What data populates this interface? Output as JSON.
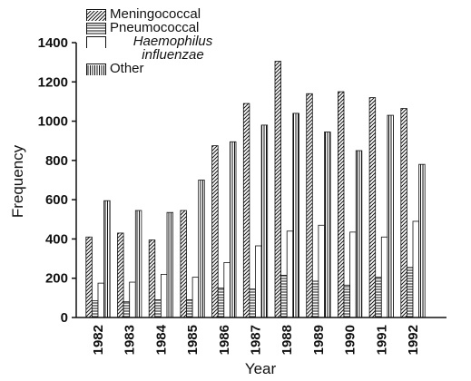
{
  "chart_data": {
    "type": "bar",
    "x_label": "Year",
    "y_label": "Frequency",
    "categories": [
      "1982",
      "1983",
      "1984",
      "1985",
      "1986",
      "1987",
      "1988",
      "1989",
      "1990",
      "1991",
      "1992"
    ],
    "series": [
      {
        "name": "Meningococcal",
        "color": "hatch-diagonal",
        "values": [
          410,
          430,
          395,
          545,
          875,
          1090,
          1305,
          1140,
          1150,
          1120,
          1065
        ]
      },
      {
        "name": "Pneumococcal",
        "color": "hatch-horizontal",
        "values": [
          85,
          80,
          90,
          90,
          150,
          145,
          215,
          185,
          165,
          205,
          255
        ]
      },
      {
        "name": "Haemophilus influenzae",
        "color": "white",
        "values": [
          175,
          180,
          220,
          205,
          280,
          365,
          440,
          470,
          435,
          410,
          490
        ]
      },
      {
        "name": "Other",
        "color": "hatch-vertical",
        "values": [
          595,
          545,
          535,
          700,
          895,
          980,
          1040,
          945,
          850,
          1030,
          780
        ]
      }
    ],
    "ylim": [
      0,
      1400
    ],
    "yticks": [
      0,
      200,
      400,
      600,
      800,
      1000,
      1200,
      1400
    ],
    "legend": "top-left"
  }
}
